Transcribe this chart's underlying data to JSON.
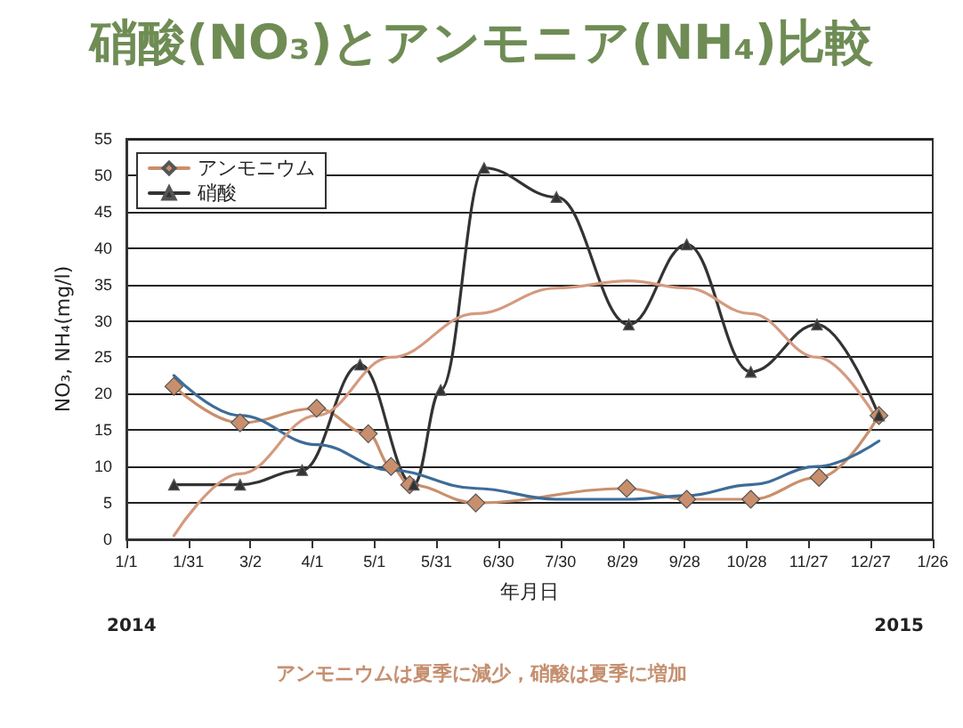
{
  "chart_data": {
    "type": "line",
    "title": "硝酸(NO₃)とアンモニア(NH₄)比較",
    "xlabel": "年月日",
    "ylabel": "NO₃, NH₄(mg/l)",
    "annotations": [
      "2014",
      "2015",
      "アンモニウムは夏季に減少，硝酸は夏季に増加"
    ],
    "xlim": [
      "2014-01-01",
      "2015-01-26"
    ],
    "xticks": [
      {
        "value": "2014-01-01",
        "label": "1/1"
      },
      {
        "value": "2014-01-31",
        "label": "1/31"
      },
      {
        "value": "2014-03-02",
        "label": "3/2"
      },
      {
        "value": "2014-04-01",
        "label": "4/1"
      },
      {
        "value": "2014-05-01",
        "label": "5/1"
      },
      {
        "value": "2014-05-31",
        "label": "5/31"
      },
      {
        "value": "2014-06-30",
        "label": "6/30"
      },
      {
        "value": "2014-07-30",
        "label": "7/30"
      },
      {
        "value": "2014-08-29",
        "label": "8/29"
      },
      {
        "value": "2014-09-28",
        "label": "9/28"
      },
      {
        "value": "2014-10-28",
        "label": "10/28"
      },
      {
        "value": "2014-11-27",
        "label": "11/27"
      },
      {
        "value": "2014-12-27",
        "label": "12/27"
      },
      {
        "value": "2015-01-26",
        "label": "1/26"
      }
    ],
    "ylim": [
      0,
      55
    ],
    "yticks": [
      0,
      5,
      10,
      15,
      20,
      25,
      30,
      35,
      40,
      45,
      50,
      55
    ],
    "grid": "y",
    "legend": "top left",
    "series": [
      {
        "name": "アンモニウム",
        "color": "#c98f6c",
        "marker": "diamond",
        "x": [
          "2014-01-24",
          "2014-02-25",
          "2014-04-03",
          "2014-04-28",
          "2014-05-09",
          "2014-05-18",
          "2014-06-19",
          "2014-08-31",
          "2014-09-29",
          "2014-10-30",
          "2014-12-02",
          "2014-12-31"
        ],
        "values": [
          21,
          16,
          18,
          14.5,
          10,
          7.5,
          5,
          7,
          5.5,
          5.5,
          8.5,
          17
        ]
      },
      {
        "name": "硝酸",
        "color": "#333333",
        "marker": "triangle",
        "x": [
          "2014-01-24",
          "2014-02-25",
          "2014-03-27",
          "2014-04-24",
          "2014-05-20",
          "2014-06-02",
          "2014-06-23",
          "2014-07-28",
          "2014-09-01",
          "2014-09-29",
          "2014-10-30",
          "2014-12-01",
          "2014-12-31"
        ],
        "values": [
          7.5,
          7.5,
          9.5,
          24,
          7.5,
          20.5,
          51,
          47,
          29.5,
          40.5,
          23,
          29.5,
          17
        ]
      },
      {
        "color": "#3d6c98",
        "marker": "none",
        "x": [
          "2014-01-24",
          "2014-02-25",
          "2014-04-03",
          "2014-05-09",
          "2014-06-19",
          "2014-07-28",
          "2014-09-01",
          "2014-09-29",
          "2014-10-30",
          "2014-12-01",
          "2014-12-31"
        ],
        "values": [
          22.5,
          17,
          13,
          9.5,
          7,
          5.5,
          5.5,
          6,
          7.5,
          10,
          13.5
        ]
      },
      {
        "color": "#d49a80",
        "marker": "none",
        "x": [
          "2014-01-24",
          "2014-02-25",
          "2014-04-03",
          "2014-05-09",
          "2014-06-19",
          "2014-07-28",
          "2014-09-01",
          "2014-09-29",
          "2014-10-30",
          "2014-12-01",
          "2014-12-31"
        ],
        "values": [
          0.5,
          9,
          17,
          25,
          31,
          34.5,
          35.5,
          34.5,
          31,
          25,
          16
        ]
      }
    ]
  }
}
